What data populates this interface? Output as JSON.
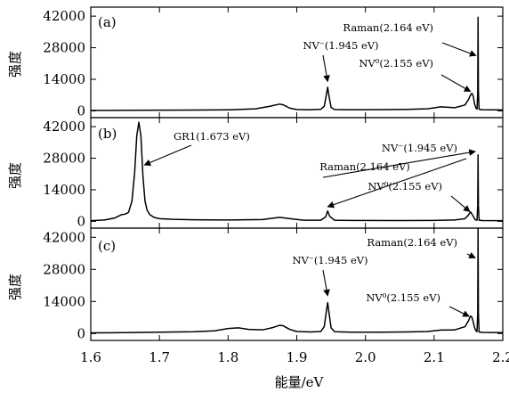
{
  "chart_data": {
    "type": "line",
    "xlabel": "能量/eV",
    "xlim": [
      1.6,
      2.2
    ],
    "x_ticks": [
      "1.6",
      "1.7",
      "1.8",
      "1.9",
      "2.0",
      "2.1",
      "2.2"
    ],
    "panels": [
      {
        "panel_label": "(a)",
        "ylabel": "强度",
        "ylim": [
          -3000,
          46000
        ],
        "y_ticks": [
          "0",
          "14000",
          "28000",
          "42000"
        ],
        "series": [
          {
            "x": [
              1.6,
              1.65,
              1.7,
              1.75,
              1.8,
              1.84,
              1.86,
              1.875,
              1.88,
              1.89,
              1.9,
              1.92,
              1.935,
              1.94,
              1.943,
              1.945,
              1.947,
              1.95,
              1.955,
              1.98,
              2.02,
              2.06,
              2.09,
              2.11,
              2.13,
              2.145,
              2.15,
              2.153,
              2.155,
              2.157,
              2.159,
              2.161,
              2.1625,
              2.1635,
              2.164,
              2.1645,
              2.1655,
              2.17,
              2.185,
              2.2
            ],
            "y": [
              200,
              250,
              300,
              350,
              450,
              900,
              2000,
              3000,
              2700,
              1200,
              600,
              500,
              700,
              2000,
              7000,
              10500,
              6500,
              1500,
              600,
              500,
              550,
              650,
              900,
              1800,
              1400,
              2600,
              5000,
              7000,
              7800,
              6500,
              3000,
              1200,
              800,
              8000,
              41500,
              9000,
              700,
              500,
              450,
              400
            ]
          }
        ],
        "annotations": [
          {
            "text": "NV⁻(1.945 eV)",
            "target_x": 1.945,
            "target_y": 13000
          },
          {
            "text": "Raman(2.164 eV)",
            "target_x": 2.161,
            "target_y": 24500
          },
          {
            "text": "NV⁰(2.155 eV)",
            "target_x": 2.153,
            "target_y": 8600
          }
        ]
      },
      {
        "panel_label": "(b)",
        "ylabel": "强度",
        "ylim": [
          -3000,
          46000
        ],
        "y_ticks": [
          "0",
          "14000",
          "28000",
          "42000"
        ],
        "series": [
          {
            "x": [
              1.6,
              1.62,
              1.635,
              1.645,
              1.65,
              1.655,
              1.66,
              1.664,
              1.667,
              1.67,
              1.673,
              1.676,
              1.679,
              1.682,
              1.686,
              1.692,
              1.7,
              1.72,
              1.75,
              1.8,
              1.85,
              1.875,
              1.89,
              1.91,
              1.935,
              1.942,
              1.945,
              1.948,
              1.955,
              1.98,
              2.05,
              2.1,
              2.13,
              2.145,
              2.15,
              2.153,
              2.156,
              2.16,
              2.1625,
              2.1635,
              2.164,
              2.1645,
              2.1655,
              2.17,
              2.2
            ],
            "y": [
              300,
              600,
              1500,
              3000,
              3200,
              4000,
              9000,
              22000,
              38000,
              44000,
              38000,
              20000,
              9000,
              5000,
              3000,
              1800,
              1200,
              900,
              700,
              600,
              800,
              1800,
              1200,
              500,
              500,
              2000,
              4600,
              2200,
              500,
              400,
              350,
              400,
              600,
              1200,
              2800,
              4200,
              2800,
              700,
              500,
              7000,
              29500,
              7000,
              500,
              350,
              300
            ]
          }
        ],
        "annotations": [
          {
            "text": "GR1(1.673 eV)",
            "target_x": 1.678,
            "target_y": 25000
          },
          {
            "text": "NV⁻(1.945 eV)",
            "target_x": 1.945,
            "target_y": 6500
          },
          {
            "text": "Raman(2.164 eV)",
            "target_x": 2.16,
            "target_y": 31000
          },
          {
            "text": "NV⁰(2.155 eV)",
            "target_x": 2.152,
            "target_y": 4300
          }
        ]
      },
      {
        "panel_label": "(c)",
        "ylabel": "强度",
        "ylim": [
          -3000,
          46000
        ],
        "y_ticks": [
          "0",
          "14000",
          "28000",
          "42000"
        ],
        "series": [
          {
            "x": [
              1.6,
              1.65,
              1.7,
              1.75,
              1.78,
              1.8,
              1.815,
              1.83,
              1.85,
              1.865,
              1.875,
              1.88,
              1.89,
              1.9,
              1.92,
              1.935,
              1.94,
              1.943,
              1.945,
              1.947,
              1.95,
              1.955,
              1.98,
              2.02,
              2.06,
              2.09,
              2.11,
              2.13,
              2.145,
              2.15,
              2.153,
              2.155,
              2.157,
              2.159,
              2.161,
              2.1625,
              2.1635,
              2.164,
              2.1645,
              2.1655,
              2.17,
              2.185,
              2.2
            ],
            "y": [
              300,
              400,
              600,
              800,
              1200,
              2200,
              2500,
              1800,
              1600,
              2600,
              3600,
              3400,
              1800,
              900,
              700,
              900,
              3000,
              9500,
              13500,
              9000,
              2500,
              800,
              600,
              600,
              700,
              900,
              1500,
              1600,
              3000,
              5500,
              7600,
              7200,
              5000,
              2500,
              1200,
              800,
              9000,
              46000,
              9000,
              700,
              500,
              450,
              400
            ]
          }
        ],
        "annotations": [
          {
            "text": "NV⁻(1.945 eV)",
            "target_x": 1.945,
            "target_y": 16500
          },
          {
            "text": "Raman(2.164 eV)",
            "target_x": 2.16,
            "target_y": 33000
          },
          {
            "text": "NV⁰(2.155 eV)",
            "target_x": 2.151,
            "target_y": 7500
          }
        ]
      }
    ]
  }
}
